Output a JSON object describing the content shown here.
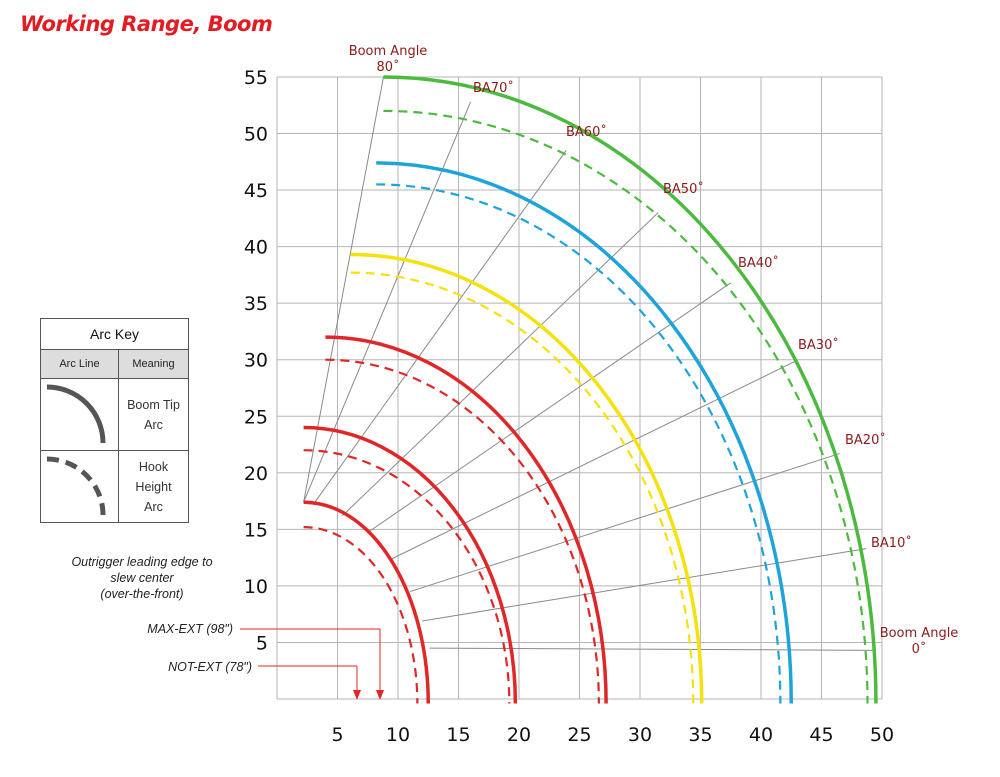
{
  "title": "Working Range, Boom",
  "chart_data": {
    "type": "line",
    "title": "Working Range, Boom",
    "x_ticks": [
      5,
      10,
      15,
      20,
      25,
      30,
      35,
      40,
      45,
      50
    ],
    "y_ticks": [
      5,
      10,
      15,
      20,
      25,
      30,
      35,
      40,
      45,
      50,
      55
    ],
    "xlim": [
      0,
      50
    ],
    "ylim": [
      0,
      55
    ],
    "grid": true,
    "boom_tip_arcs": [
      {
        "color": "#e02727",
        "end_x": 12.5,
        "start": [
          2.2,
          17.4
        ]
      },
      {
        "color": "#e02727",
        "end_x": 19.7,
        "start": [
          2.2,
          24.0
        ]
      },
      {
        "color": "#e02727",
        "end_x": 27.2,
        "start": [
          4.0,
          32.0
        ]
      },
      {
        "color": "#f5e10c",
        "end_x": 35.1,
        "start": [
          6.1,
          39.3
        ]
      },
      {
        "color": "#1ea4d9",
        "end_x": 42.5,
        "start": [
          8.2,
          47.4
        ]
      },
      {
        "color": "#4cba3f",
        "end_x": 49.5,
        "start": [
          8.8,
          55.0
        ]
      }
    ],
    "hook_height_arcs": [
      {
        "color": "#e02727",
        "end_x": 11.6,
        "start": [
          2.2,
          15.2
        ]
      },
      {
        "color": "#e02727",
        "end_x": 19.2,
        "start": [
          2.2,
          22.0
        ]
      },
      {
        "color": "#e02727",
        "end_x": 26.6,
        "start": [
          4.0,
          30.0
        ]
      },
      {
        "color": "#f5e10c",
        "end_x": 34.4,
        "start": [
          6.1,
          37.7
        ]
      },
      {
        "color": "#1ea4d9",
        "end_x": 41.6,
        "start": [
          8.2,
          45.5
        ]
      },
      {
        "color": "#4cba3f",
        "end_x": 48.8,
        "start": [
          8.8,
          52.0
        ]
      }
    ],
    "boom_angle_lines": [
      {
        "label": "Boom Angle 0˚",
        "angle": 0,
        "from": [
          12.6,
          4.5
        ],
        "to": [
          49.5,
          4.3
        ]
      },
      {
        "label": "BA10˚",
        "angle": 10,
        "from": [
          12.0,
          6.9
        ],
        "to": [
          48.7,
          13.3
        ]
      },
      {
        "label": "BA20˚",
        "angle": 20,
        "from": [
          11.0,
          9.5
        ],
        "to": [
          46.5,
          21.7
        ]
      },
      {
        "label": "BA30˚",
        "angle": 30,
        "from": [
          9.5,
          12.4
        ],
        "to": [
          42.9,
          29.9
        ]
      },
      {
        "label": "BA40˚",
        "angle": 40,
        "from": [
          7.6,
          14.8
        ],
        "to": [
          37.5,
          36.8
        ]
      },
      {
        "label": "BA50˚",
        "angle": 50,
        "from": [
          5.4,
          16.2
        ],
        "to": [
          31.5,
          43.0
        ]
      },
      {
        "label": "BA60˚",
        "angle": 60,
        "from": [
          3.0,
          17.2
        ],
        "to": [
          23.9,
          48.5
        ]
      },
      {
        "label": "BA70˚",
        "angle": 70,
        "from": [
          2.2,
          17.4
        ],
        "to": [
          16.0,
          52.8
        ]
      },
      {
        "label": "Boom Angle 80˚",
        "angle": 80,
        "from": [
          2.2,
          17.4
        ],
        "to": [
          8.8,
          55.0
        ]
      }
    ],
    "outrigger_markers": [
      {
        "label": "MAX-EXT (98\")",
        "x": 8.2
      },
      {
        "label": "NOT-EXT (78\")",
        "x": 6.3
      }
    ],
    "annotation": [
      "Outrigger leading edge to",
      "slew center",
      "(over-the-front)"
    ]
  },
  "labels": {
    "ba80_line1": "Boom Angle",
    "ba80_line2": "80˚",
    "ba0_line1": "Boom Angle",
    "ba0_line2": "0˚",
    "ba70": "BA70˚",
    "ba60": "BA60˚",
    "ba50": "BA50˚",
    "ba40": "BA40˚",
    "ba30": "BA30˚",
    "ba20": "BA20˚",
    "ba10": "BA10˚",
    "note_1": "Outrigger leading edge to",
    "note_2": "slew center",
    "note_3": "(over-the-front)",
    "max_ext": "MAX-EXT (98\")",
    "not_ext": "NOT-EXT (78\")"
  },
  "arc_key": {
    "title": "Arc Key",
    "col_line": "Arc Line",
    "col_meaning": "Meaning",
    "row1_line1": "Boom Tip",
    "row1_line2": "Arc",
    "row2_line1": "Hook",
    "row2_line2": "Height Arc"
  }
}
